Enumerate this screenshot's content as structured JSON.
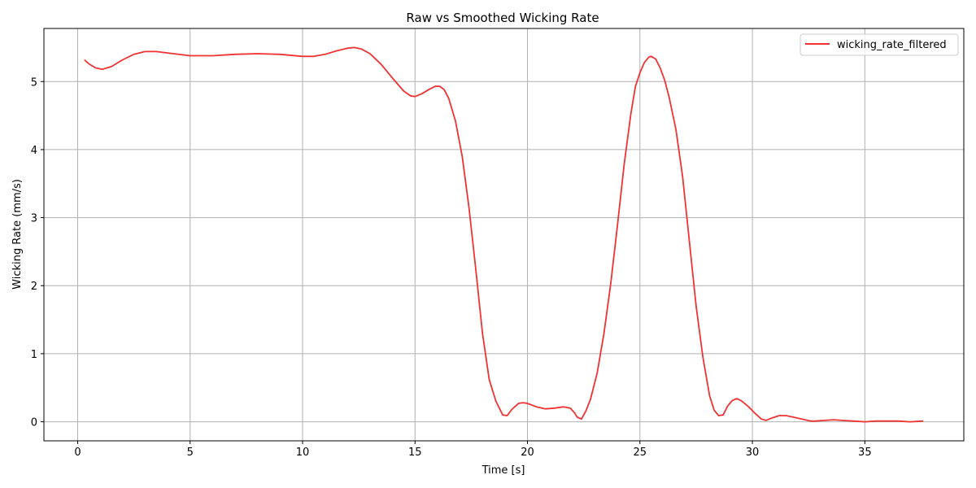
{
  "chart_data": {
    "type": "line",
    "title": "Raw vs Smoothed Wicking Rate",
    "xlabel": "Time [s]",
    "ylabel": "Wicking Rate (mm/s)",
    "xlim": [
      -1.5,
      39.4
    ],
    "ylim": [
      -0.28,
      5.78
    ],
    "xticks": [
      0,
      5,
      10,
      15,
      20,
      25,
      30,
      35
    ],
    "yticks": [
      0,
      1,
      2,
      3,
      4,
      5
    ],
    "grid": true,
    "legend_position": "top-right",
    "series": [
      {
        "name": "wicking_rate_filtered",
        "color": "#f03232",
        "x": [
          0.3,
          0.5,
          0.8,
          1.1,
          1.5,
          2.0,
          2.5,
          3.0,
          3.5,
          4.0,
          5.0,
          6.0,
          7.0,
          8.0,
          9.0,
          10.0,
          10.5,
          11.0,
          11.5,
          12.0,
          12.3,
          12.6,
          13.0,
          13.5,
          14.0,
          14.5,
          14.8,
          15.0,
          15.3,
          15.6,
          15.9,
          16.1,
          16.3,
          16.5,
          16.8,
          17.1,
          17.4,
          17.7,
          18.0,
          18.3,
          18.6,
          18.9,
          19.1,
          19.3,
          19.6,
          19.8,
          20.0,
          20.4,
          20.8,
          21.2,
          21.6,
          21.9,
          22.1,
          22.2,
          22.4,
          22.6,
          22.8,
          23.1,
          23.4,
          23.7,
          24.0,
          24.3,
          24.6,
          24.8,
          25.0,
          25.2,
          25.4,
          25.5,
          25.7,
          25.9,
          26.1,
          26.3,
          26.6,
          26.9,
          27.2,
          27.5,
          27.8,
          28.1,
          28.3,
          28.5,
          28.7,
          28.9,
          29.1,
          29.3,
          29.5,
          29.8,
          30.1,
          30.4,
          30.6,
          30.9,
          31.2,
          31.5,
          31.8,
          32.2,
          32.6,
          32.8,
          33.2,
          33.6,
          34.0,
          34.5,
          35.0,
          35.5,
          36.0,
          36.5,
          37.0,
          37.6
        ],
        "y": [
          5.32,
          5.26,
          5.2,
          5.18,
          5.22,
          5.32,
          5.4,
          5.44,
          5.44,
          5.42,
          5.38,
          5.38,
          5.4,
          5.41,
          5.4,
          5.37,
          5.37,
          5.4,
          5.45,
          5.49,
          5.5,
          5.48,
          5.41,
          5.25,
          5.05,
          4.86,
          4.79,
          4.78,
          4.82,
          4.88,
          4.93,
          4.93,
          4.88,
          4.75,
          4.42,
          3.9,
          3.15,
          2.25,
          1.3,
          0.62,
          0.3,
          0.1,
          0.09,
          0.18,
          0.27,
          0.28,
          0.27,
          0.22,
          0.19,
          0.2,
          0.22,
          0.2,
          0.13,
          0.07,
          0.04,
          0.16,
          0.33,
          0.72,
          1.3,
          2.03,
          2.88,
          3.78,
          4.53,
          4.93,
          5.13,
          5.28,
          5.36,
          5.37,
          5.33,
          5.2,
          5.02,
          4.77,
          4.3,
          3.6,
          2.65,
          1.7,
          0.95,
          0.38,
          0.17,
          0.09,
          0.1,
          0.23,
          0.31,
          0.34,
          0.31,
          0.23,
          0.13,
          0.04,
          0.02,
          0.06,
          0.09,
          0.09,
          0.07,
          0.04,
          0.01,
          0.01,
          0.02,
          0.03,
          0.02,
          0.01,
          0.0,
          0.01,
          0.01,
          0.01,
          0.0,
          0.01
        ]
      }
    ]
  }
}
